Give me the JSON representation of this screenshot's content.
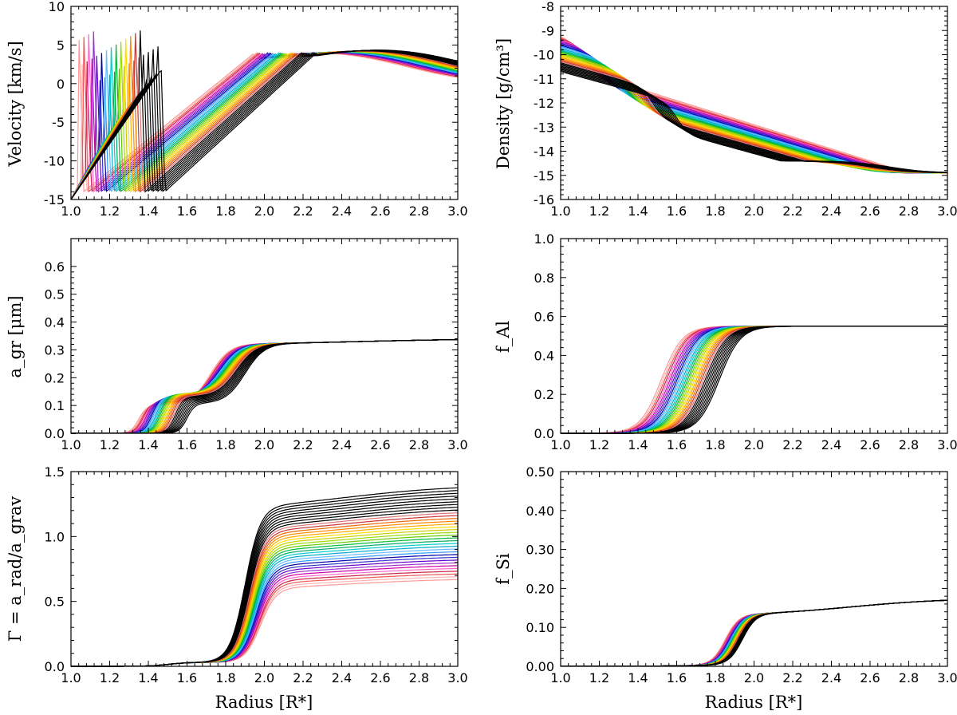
{
  "chart_data": [
    {
      "type": "line",
      "id": "velocity",
      "ylabel": "Velocity [km/s]",
      "xlabel": "",
      "xlim": [
        1.0,
        3.0
      ],
      "ylim": [
        -15,
        10
      ],
      "xticks": [
        "1.0",
        "1.2",
        "1.4",
        "1.6",
        "1.8",
        "2.0",
        "2.2",
        "2.4",
        "2.6",
        "2.8",
        "3.0"
      ],
      "yticks": [
        "-15",
        "-10",
        "-5",
        "0",
        "5",
        "10"
      ],
      "ytick_values": [
        -15,
        -10,
        -5,
        0,
        5,
        10
      ],
      "series_family": "velocity_shocks",
      "series_count": 34
    },
    {
      "type": "line",
      "id": "density",
      "ylabel": "Density [g/cm³]",
      "xlabel": "",
      "xlim": [
        1.0,
        3.0
      ],
      "ylim": [
        -16,
        -8
      ],
      "xticks": [
        "1.0",
        "1.2",
        "1.4",
        "1.6",
        "1.8",
        "2.0",
        "2.2",
        "2.4",
        "2.6",
        "2.8",
        "3.0"
      ],
      "yticks": [
        "-16",
        "-15",
        "-14",
        "-13",
        "-12",
        "-11",
        "-10",
        "-9",
        "-8"
      ],
      "ytick_values": [
        -16,
        -15,
        -14,
        -13,
        -12,
        -11,
        -10,
        -9,
        -8
      ],
      "series_family": "density_profiles",
      "series_count": 34
    },
    {
      "type": "line",
      "id": "agr",
      "ylabel": "a_gr [μm]",
      "xlabel": "",
      "xlim": [
        1.0,
        3.0
      ],
      "ylim": [
        0,
        0.7
      ],
      "xticks": [
        "1.0",
        "1.2",
        "1.4",
        "1.6",
        "1.8",
        "2.0",
        "2.2",
        "2.4",
        "2.6",
        "2.8",
        "3.0"
      ],
      "yticks": [
        "0.0",
        "0.1",
        "0.2",
        "0.3",
        "0.4",
        "0.5",
        "0.6"
      ],
      "ytick_values": [
        0,
        0.1,
        0.2,
        0.3,
        0.4,
        0.5,
        0.6
      ],
      "series_family": "grain_radius",
      "series_count": 34
    },
    {
      "type": "line",
      "id": "fal",
      "ylabel": "f_Al",
      "xlabel": "",
      "xlim": [
        1.0,
        3.0
      ],
      "ylim": [
        0,
        1.0
      ],
      "xticks": [
        "1.0",
        "1.2",
        "1.4",
        "1.6",
        "1.8",
        "2.0",
        "2.2",
        "2.4",
        "2.6",
        "2.8",
        "3.0"
      ],
      "yticks": [
        "0.0",
        "0.2",
        "0.4",
        "0.6",
        "0.8",
        "1.0"
      ],
      "ytick_values": [
        0,
        0.2,
        0.4,
        0.6,
        0.8,
        1.0
      ],
      "series_family": "condensation_al",
      "series_count": 34
    },
    {
      "type": "line",
      "id": "gamma",
      "ylabel": "Γ = a_rad/a_grav",
      "xlabel": "Radius [R*]",
      "xlim": [
        1.0,
        3.0
      ],
      "ylim": [
        0,
        1.5
      ],
      "xticks": [
        "1.0",
        "1.2",
        "1.4",
        "1.6",
        "1.8",
        "2.0",
        "2.2",
        "2.4",
        "2.6",
        "2.8",
        "3.0"
      ],
      "yticks": [
        "0.0",
        "0.5",
        "1.0",
        "1.5"
      ],
      "ytick_values": [
        0,
        0.5,
        1.0,
        1.5
      ],
      "series_family": "gamma_ratio",
      "series_count": 34
    },
    {
      "type": "line",
      "id": "fsi",
      "ylabel": "f_Si",
      "xlabel": "Radius [R*]",
      "xlim": [
        1.0,
        3.0
      ],
      "ylim": [
        0,
        0.5
      ],
      "xticks": [
        "1.0",
        "1.2",
        "1.4",
        "1.6",
        "1.8",
        "2.0",
        "2.2",
        "2.4",
        "2.6",
        "2.8",
        "3.0"
      ],
      "yticks": [
        "0.00",
        "0.10",
        "0.20",
        "0.30",
        "0.40",
        "0.50"
      ],
      "ytick_values": [
        0,
        0.1,
        0.2,
        0.3,
        0.4,
        0.5
      ],
      "series_family": "condensation_si",
      "series_count": 34
    }
  ],
  "palette": [
    "#ff9999",
    "#ffb3b3",
    "#ee5555",
    "#cc2244",
    "#ff66cc",
    "#cc00aa",
    "#9933cc",
    "#6600cc",
    "#3333cc",
    "#0000aa",
    "#3399ff",
    "#66bbff",
    "#00aacc",
    "#00cccc",
    "#00aa66",
    "#00bb33",
    "#66cc00",
    "#99dd00",
    "#cccc00",
    "#ffdd00",
    "#ffaa00",
    "#ff8800",
    "#ee6600",
    "#cc3333",
    "#dd7777",
    "#000000",
    "#000000",
    "#000000",
    "#000000",
    "#000000",
    "#000000",
    "#000000",
    "#000000",
    "#000000"
  ]
}
